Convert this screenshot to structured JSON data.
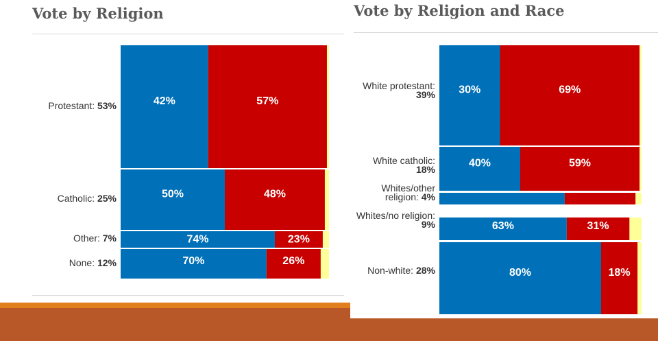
{
  "colors": {
    "dem": "#0070b8",
    "rep": "#c80000",
    "other": "#ffff99"
  },
  "chart_data": [
    {
      "type": "bar",
      "title": "Vote by Religion",
      "rows": [
        {
          "label": "Protestant:",
          "share": "53%",
          "dem": 42,
          "rep": 57,
          "dem_label": "42%",
          "rep_label": "57%"
        },
        {
          "label": "Catholic:",
          "share": "25%",
          "dem": 50,
          "rep": 48,
          "dem_label": "50%",
          "rep_label": "48%"
        },
        {
          "label": "Other:",
          "share": "7%",
          "dem": 74,
          "rep": 23,
          "dem_label": "74%",
          "rep_label": "23%"
        },
        {
          "label": "None:",
          "share": "12%",
          "dem": 70,
          "rep": 26,
          "dem_label": "70%",
          "rep_label": "26%"
        }
      ]
    },
    {
      "type": "bar",
      "title": "Vote by Religion and Race",
      "rows": [
        {
          "label": "White protestant:",
          "share": "39%",
          "dem": 30,
          "rep": 69,
          "dem_label": "30%",
          "rep_label": "69%"
        },
        {
          "label": "White catholic:",
          "share": "18%",
          "dem": 40,
          "rep": 59,
          "dem_label": "40%",
          "rep_label": "59%"
        },
        {
          "label": "Whites/other religion:",
          "share": "4%",
          "dem": 62,
          "rep": 35,
          "dem_label": "",
          "rep_label": ""
        },
        {
          "label": "Whites/no religion:",
          "share": "9%",
          "dem": 63,
          "rep": 31,
          "dem_label": "63%",
          "rep_label": "31%"
        },
        {
          "label": "Non-white:",
          "share": "28%",
          "dem": 80,
          "rep": 18,
          "dem_label": "80%",
          "rep_label": "18%"
        }
      ]
    }
  ]
}
